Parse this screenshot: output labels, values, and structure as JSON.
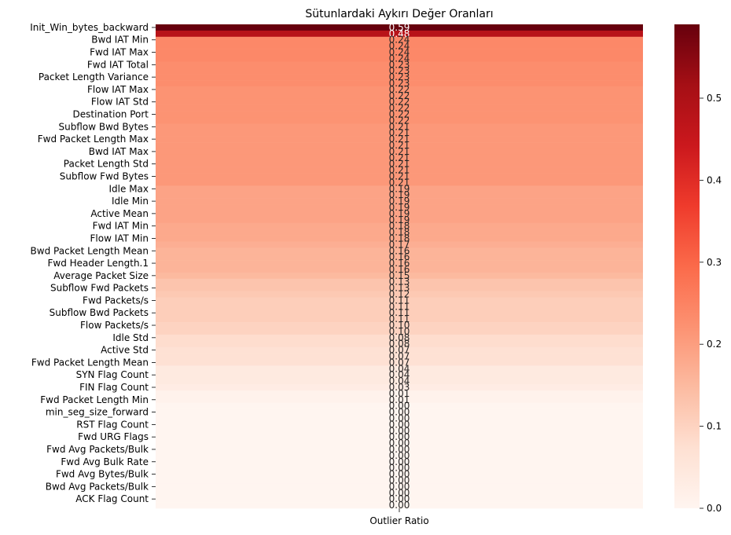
{
  "chart_data": {
    "type": "heatmap",
    "title": "Sütunlardaki Aykırı Değer Oranları",
    "xlabel": "",
    "ylabel": "",
    "column": "Outlier Ratio",
    "colormap": "Reds",
    "vmin": 0.0,
    "vmax": 0.59,
    "colorbar_ticks": [
      "0.0",
      "0.1",
      "0.2",
      "0.3",
      "0.4",
      "0.5"
    ],
    "annotation_format": "0.00",
    "rows": [
      {
        "label": "Init_Win_bytes_backward",
        "value": 0.59,
        "tick": true
      },
      {
        "label": "",
        "value": 0.48,
        "tick": false
      },
      {
        "label": "Bwd IAT Min",
        "value": 0.24,
        "tick": true
      },
      {
        "label": "",
        "value": 0.24,
        "tick": false
      },
      {
        "label": "Fwd IAT Max",
        "value": 0.24,
        "tick": true
      },
      {
        "label": "",
        "value": 0.24,
        "tick": false
      },
      {
        "label": "Fwd IAT Total",
        "value": 0.23,
        "tick": true
      },
      {
        "label": "",
        "value": 0.23,
        "tick": false
      },
      {
        "label": "Packet Length Variance",
        "value": 0.23,
        "tick": true
      },
      {
        "label": "",
        "value": 0.23,
        "tick": false
      },
      {
        "label": "Flow IAT Max",
        "value": 0.22,
        "tick": true
      },
      {
        "label": "",
        "value": 0.22,
        "tick": false
      },
      {
        "label": "Flow IAT Std",
        "value": 0.22,
        "tick": true
      },
      {
        "label": "",
        "value": 0.22,
        "tick": false
      },
      {
        "label": "Destination Port",
        "value": 0.22,
        "tick": true
      },
      {
        "label": "",
        "value": 0.22,
        "tick": false
      },
      {
        "label": "Subflow Bwd Bytes",
        "value": 0.21,
        "tick": true
      },
      {
        "label": "",
        "value": 0.21,
        "tick": false
      },
      {
        "label": "Fwd Packet Length Max",
        "value": 0.21,
        "tick": true
      },
      {
        "label": "",
        "value": 0.21,
        "tick": false
      },
      {
        "label": "Bwd IAT Max",
        "value": 0.21,
        "tick": true
      },
      {
        "label": "",
        "value": 0.21,
        "tick": false
      },
      {
        "label": "Packet Length Std",
        "value": 0.21,
        "tick": true
      },
      {
        "label": "",
        "value": 0.21,
        "tick": false
      },
      {
        "label": "Subflow Fwd Bytes",
        "value": 0.21,
        "tick": true
      },
      {
        "label": "",
        "value": 0.21,
        "tick": false
      },
      {
        "label": "Idle Max",
        "value": 0.19,
        "tick": true
      },
      {
        "label": "",
        "value": 0.19,
        "tick": false
      },
      {
        "label": "Idle Min",
        "value": 0.19,
        "tick": true
      },
      {
        "label": "",
        "value": 0.19,
        "tick": false
      },
      {
        "label": "Active Mean",
        "value": 0.19,
        "tick": true
      },
      {
        "label": "",
        "value": 0.19,
        "tick": false
      },
      {
        "label": "Fwd IAT Min",
        "value": 0.18,
        "tick": true
      },
      {
        "label": "",
        "value": 0.18,
        "tick": false
      },
      {
        "label": "Flow IAT Min",
        "value": 0.18,
        "tick": true
      },
      {
        "label": "",
        "value": 0.17,
        "tick": false
      },
      {
        "label": "Bwd Packet Length Mean",
        "value": 0.16,
        "tick": true
      },
      {
        "label": "",
        "value": 0.16,
        "tick": false
      },
      {
        "label": "Fwd Header Length.1",
        "value": 0.16,
        "tick": true
      },
      {
        "label": "",
        "value": 0.16,
        "tick": false
      },
      {
        "label": "Average Packet Size",
        "value": 0.15,
        "tick": true
      },
      {
        "label": "",
        "value": 0.13,
        "tick": false
      },
      {
        "label": "Subflow Fwd Packets",
        "value": 0.13,
        "tick": true
      },
      {
        "label": "",
        "value": 0.12,
        "tick": false
      },
      {
        "label": "Fwd Packets/s",
        "value": 0.11,
        "tick": true
      },
      {
        "label": "",
        "value": 0.11,
        "tick": false
      },
      {
        "label": "Subflow Bwd Packets",
        "value": 0.11,
        "tick": true
      },
      {
        "label": "",
        "value": 0.11,
        "tick": false
      },
      {
        "label": "Flow Packets/s",
        "value": 0.1,
        "tick": true
      },
      {
        "label": "",
        "value": 0.1,
        "tick": false
      },
      {
        "label": "Idle Std",
        "value": 0.08,
        "tick": true
      },
      {
        "label": "",
        "value": 0.08,
        "tick": false
      },
      {
        "label": "Active Std",
        "value": 0.07,
        "tick": true
      },
      {
        "label": "",
        "value": 0.07,
        "tick": false
      },
      {
        "label": "Fwd Packet Length Mean",
        "value": 0.07,
        "tick": true
      },
      {
        "label": "",
        "value": 0.04,
        "tick": false
      },
      {
        "label": "SYN Flag Count",
        "value": 0.04,
        "tick": true
      },
      {
        "label": "",
        "value": 0.04,
        "tick": false
      },
      {
        "label": "FIN Flag Count",
        "value": 0.03,
        "tick": true
      },
      {
        "label": "",
        "value": 0.01,
        "tick": false
      },
      {
        "label": "Fwd Packet Length Min",
        "value": 0.01,
        "tick": true
      },
      {
        "label": "",
        "value": 0.0,
        "tick": false
      },
      {
        "label": "min_seg_size_forward",
        "value": 0.0,
        "tick": true
      },
      {
        "label": "",
        "value": 0.0,
        "tick": false
      },
      {
        "label": "RST Flag Count",
        "value": 0.0,
        "tick": true
      },
      {
        "label": "",
        "value": 0.0,
        "tick": false
      },
      {
        "label": "Fwd URG Flags",
        "value": 0.0,
        "tick": true
      },
      {
        "label": "",
        "value": 0.0,
        "tick": false
      },
      {
        "label": "Fwd Avg Packets/Bulk",
        "value": 0.0,
        "tick": true
      },
      {
        "label": "",
        "value": 0.0,
        "tick": false
      },
      {
        "label": "Fwd Avg Bulk Rate",
        "value": 0.0,
        "tick": true
      },
      {
        "label": "",
        "value": 0.0,
        "tick": false
      },
      {
        "label": "Fwd Avg Bytes/Bulk",
        "value": 0.0,
        "tick": true
      },
      {
        "label": "",
        "value": 0.0,
        "tick": false
      },
      {
        "label": "Bwd Avg Packets/Bulk",
        "value": 0.0,
        "tick": true
      },
      {
        "label": "",
        "value": 0.0,
        "tick": false
      },
      {
        "label": "ACK Flag Count",
        "value": 0.0,
        "tick": true
      },
      {
        "label": "",
        "value": 0.0,
        "tick": false
      }
    ]
  }
}
